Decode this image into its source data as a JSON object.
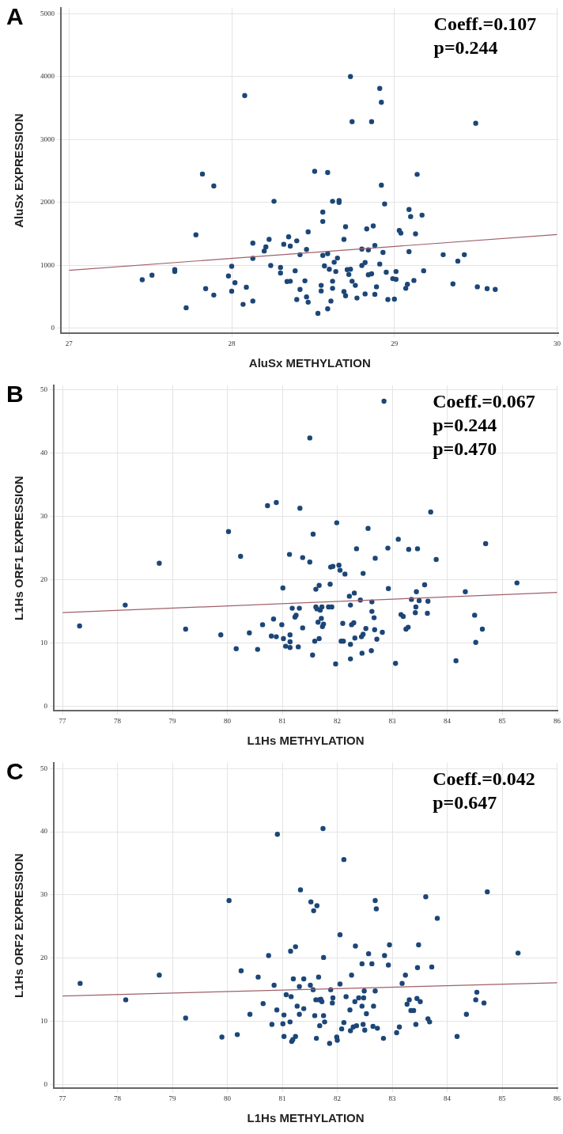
{
  "chart_data": [
    {
      "type": "scatter",
      "title": "A",
      "xlabel": "AluSx METHYLATION",
      "ylabel": "AluSx EXPRESSION",
      "xlim": [
        26.95,
        30.01
      ],
      "ylim": [
        -80,
        5090
      ],
      "xticks": [
        27,
        28,
        29,
        30
      ],
      "yticks": [
        0,
        1000,
        2000,
        3000,
        4000,
        5000
      ],
      "grid": true,
      "annotations": [
        "Coeff.=0.107",
        "p=0.244"
      ],
      "series": [
        {
          "color": "#1c4677",
          "marker": "circle",
          "x": [
            27.45,
            27.51,
            27.65,
            27.65,
            27.72,
            27.78,
            27.82,
            27.84,
            27.89,
            27.89,
            27.98,
            28.0,
            28.0,
            28.02,
            28.07,
            28.08,
            28.09,
            28.13,
            28.13,
            28.13,
            28.2,
            28.21,
            28.23,
            28.24,
            28.26,
            28.3,
            28.3,
            28.32,
            28.35,
            28.34,
            28.36,
            28.36,
            28.39,
            28.4,
            28.42,
            28.42,
            28.4,
            28.45,
            28.46,
            28.47,
            28.46,
            28.47,
            28.51,
            28.53,
            28.55,
            28.55,
            28.56,
            28.56,
            28.56,
            28.57,
            28.59,
            28.59,
            28.59,
            28.6,
            28.61,
            28.62,
            28.62,
            28.62,
            28.63,
            28.64,
            28.65,
            28.66,
            28.66,
            28.69,
            28.69,
            28.7,
            28.7,
            28.71,
            28.72,
            28.73,
            28.73,
            28.74,
            28.74,
            28.76,
            28.77,
            28.8,
            28.8,
            28.82,
            28.82,
            28.83,
            28.84,
            28.84,
            28.86,
            28.86,
            28.87,
            28.88,
            28.88,
            28.89,
            28.91,
            28.91,
            28.92,
            28.92,
            28.93,
            28.94,
            28.95,
            28.96,
            28.99,
            29.0,
            29.01,
            29.01,
            29.03,
            29.04,
            29.07,
            29.08,
            29.09,
            29.09,
            29.1,
            29.12,
            29.13,
            29.14,
            29.17,
            29.18,
            29.3,
            29.36,
            29.39,
            29.43,
            29.5,
            29.51,
            29.57,
            29.62
          ],
          "values": [
            772,
            843,
            932,
            902,
            326,
            1484,
            2451,
            629,
            528,
            2261,
            831,
            985,
            588,
            724,
            380,
            3697,
            653,
            1353,
            1110,
            433,
            1228,
            1294,
            1412,
            997,
            2018,
            878,
            967,
            1335,
            1454,
            742,
            1306,
            748,
            914,
            1389,
            1169,
            617,
            457,
            754,
            1252,
            1531,
            499,
            415,
            2493,
            237,
            682,
            593,
            1697,
            1846,
            1157,
            991,
            2475,
            309,
            1187,
            938,
            433,
            635,
            748,
            2018,
            1050,
            902,
            1116,
            2030,
            2000,
            1412,
            582,
            1614,
            516,
            932,
            855,
            938,
            4000,
            748,
            3282,
            682,
            481,
            1258,
            997,
            1044,
            546,
            1579,
            1246,
            849,
            866,
            3282,
            1626,
            540,
            1317,
            659,
            1021,
            3810,
            3591,
            2273,
            1205,
            1976,
            890,
            457,
            789,
            463,
            902,
            777,
            1555,
            1513,
            635,
            700,
            1887,
            1217,
            1775,
            760,
            1501,
            2445,
            1798,
            914,
            1169,
            706,
            1068,
            1169,
            3258,
            659,
            629,
            617
          ]
        },
        {
          "type": "line",
          "color": "#a0606a",
          "marker": "none",
          "x": [
            27,
            30
          ],
          "values": [
            920,
            1490
          ]
        }
      ]
    },
    {
      "type": "scatter",
      "title": "B",
      "xlabel": "L1Hs METHYLATION",
      "ylabel": "L1Hs ORF1 EXPRESSION",
      "xlim": [
        76.84,
        86.01
      ],
      "ylim": [
        -0.7,
        50.7
      ],
      "xticks": [
        77,
        78,
        79,
        80,
        81,
        82,
        83,
        84,
        85,
        86
      ],
      "yticks": [
        0,
        10,
        20,
        30,
        40,
        50
      ],
      "grid": true,
      "annotations": [
        "Coeff.=0.067",
        "p=0.244",
        "p=0.470"
      ],
      "series": [
        {
          "color": "#1c4677",
          "marker": "circle",
          "x": [
            77.31,
            78.14,
            78.76,
            79.24,
            79.88,
            80.02,
            80.16,
            80.24,
            80.4,
            80.55,
            80.64,
            80.73,
            80.8,
            80.84,
            80.89,
            80.89,
            80.99,
            81.01,
            81.02,
            81.06,
            81.13,
            81.14,
            81.14,
            81.14,
            81.18,
            81.23,
            81.25,
            81.29,
            81.31,
            81.32,
            81.37,
            81.37,
            81.5,
            81.5,
            81.56,
            81.55,
            81.59,
            81.61,
            81.61,
            81.63,
            81.65,
            81.67,
            81.67,
            81.69,
            81.71,
            81.72,
            81.73,
            81.75,
            81.84,
            81.87,
            81.88,
            81.9,
            81.92,
            81.97,
            81.99,
            82.03,
            82.05,
            82.07,
            82.11,
            82.1,
            82.14,
            82.22,
            82.24,
            82.24,
            82.24,
            82.26,
            82.3,
            82.31,
            82.32,
            82.35,
            82.42,
            82.44,
            82.45,
            82.47,
            82.47,
            82.52,
            82.56,
            82.62,
            82.63,
            82.63,
            82.67,
            82.68,
            82.69,
            82.72,
            82.82,
            82.85,
            82.92,
            82.93,
            83.06,
            83.11,
            83.16,
            83.2,
            83.25,
            83.29,
            83.3,
            83.35,
            83.42,
            83.43,
            83.44,
            83.46,
            83.49,
            83.59,
            83.64,
            83.65,
            83.7,
            83.8,
            84.16,
            84.33,
            84.5,
            84.52,
            84.64,
            84.7,
            85.27
          ],
          "values": [
            12.7,
            16.0,
            22.6,
            12.2,
            11.3,
            27.6,
            9.1,
            23.7,
            11.6,
            9.0,
            12.9,
            31.7,
            11.1,
            13.8,
            32.2,
            11.0,
            12.9,
            18.7,
            10.7,
            9.5,
            24.0,
            11.3,
            10.2,
            9.3,
            15.5,
            14.1,
            14.4,
            9.4,
            15.5,
            31.3,
            23.5,
            12.4,
            42.4,
            22.8,
            27.2,
            8.1,
            10.3,
            15.7,
            18.5,
            15.4,
            13.3,
            19.1,
            10.7,
            15.2,
            13.9,
            15.7,
            12.6,
            13.0,
            15.7,
            19.3,
            22.0,
            15.7,
            22.1,
            6.7,
            29.0,
            22.3,
            21.5,
            10.3,
            10.3,
            13.1,
            20.9,
            17.4,
            9.8,
            16.0,
            7.5,
            12.9,
            13.2,
            17.9,
            10.8,
            24.9,
            16.8,
            11.0,
            8.4,
            21.0,
            11.4,
            12.3,
            28.1,
            8.8,
            16.5,
            15.0,
            14.0,
            12.1,
            23.4,
            10.6,
            11.7,
            48.2,
            25.0,
            18.6,
            6.8,
            26.4,
            14.5,
            14.2,
            12.2,
            12.5,
            24.8,
            16.9,
            14.8,
            15.7,
            18.1,
            24.9,
            16.7,
            19.2,
            14.7,
            16.6,
            30.7,
            23.2,
            7.2,
            18.1,
            14.4,
            10.1,
            12.2,
            25.7,
            19.5
          ]
        },
        {
          "type": "line",
          "color": "#a0606a",
          "marker": "none",
          "x": [
            77,
            86
          ],
          "values": [
            14.8,
            18.0
          ]
        }
      ]
    },
    {
      "type": "scatter",
      "title": "C",
      "xlabel": "L1Hs METHYLATION",
      "ylabel": "L1Hs ORF2 EXPRESSION",
      "xlim": [
        76.84,
        86.01
      ],
      "ylim": [
        -0.6,
        50.9
      ],
      "xticks": [
        77,
        78,
        79,
        80,
        81,
        82,
        83,
        84,
        85,
        86
      ],
      "yticks": [
        0,
        10,
        20,
        30,
        40,
        50
      ],
      "grid": true,
      "annotations": [
        "Coeff.=0.042",
        "p=0.647"
      ],
      "series": [
        {
          "color": "#1c4677",
          "marker": "circle",
          "x": [
            77.32,
            78.15,
            78.76,
            79.24,
            79.9,
            80.03,
            80.18,
            80.25,
            80.41,
            80.56,
            80.65,
            80.75,
            80.81,
            80.85,
            80.9,
            80.91,
            81.01,
            81.03,
            81.03,
            81.07,
            81.14,
            81.15,
            81.16,
            81.17,
            81.19,
            81.2,
            81.24,
            81.24,
            81.27,
            81.31,
            81.31,
            81.33,
            81.39,
            81.39,
            81.51,
            81.52,
            81.56,
            81.57,
            81.59,
            81.61,
            81.62,
            81.63,
            81.66,
            81.67,
            81.68,
            81.7,
            81.72,
            81.74,
            81.75,
            81.75,
            81.77,
            81.86,
            81.88,
            81.91,
            81.92,
            81.99,
            82.0,
            82.05,
            82.05,
            82.08,
            82.12,
            82.12,
            82.16,
            82.23,
            82.24,
            82.26,
            82.29,
            82.32,
            82.33,
            82.35,
            82.39,
            82.45,
            82.45,
            82.47,
            82.48,
            82.5,
            82.49,
            82.53,
            82.57,
            82.63,
            82.65,
            82.66,
            82.69,
            82.71,
            82.69,
            82.73,
            82.84,
            82.86,
            82.93,
            82.95,
            83.08,
            83.13,
            83.18,
            83.24,
            83.27,
            83.31,
            83.34,
            83.39,
            83.43,
            83.46,
            83.48,
            83.45,
            83.51,
            83.61,
            83.65,
            83.68,
            83.72,
            83.82,
            84.18,
            84.35,
            84.52,
            84.54,
            84.67,
            84.73,
            85.29
          ],
          "values": [
            16.0,
            13.4,
            17.3,
            10.5,
            7.5,
            29.1,
            7.9,
            18.0,
            11.1,
            17.0,
            12.8,
            20.4,
            9.5,
            15.7,
            11.8,
            39.6,
            9.6,
            11.0,
            7.6,
            14.2,
            9.9,
            21.1,
            13.9,
            6.8,
            7.1,
            16.7,
            21.8,
            7.6,
            12.4,
            11.1,
            15.5,
            30.8,
            16.7,
            12.0,
            15.7,
            28.9,
            15.0,
            27.5,
            10.9,
            13.4,
            7.3,
            28.3,
            17.0,
            13.4,
            9.3,
            13.5,
            13.1,
            40.5,
            20.1,
            10.9,
            9.9,
            6.5,
            15.0,
            12.9,
            13.7,
            7.5,
            7.0,
            23.7,
            15.9,
            8.8,
            35.6,
            9.8,
            13.9,
            11.8,
            8.5,
            17.3,
            9.1,
            13.1,
            21.9,
            9.3,
            13.7,
            19.1,
            12.4,
            9.5,
            13.7,
            8.6,
            14.8,
            11.2,
            20.7,
            19.1,
            9.2,
            12.4,
            29.1,
            27.8,
            14.8,
            8.9,
            7.3,
            20.4,
            18.9,
            22.1,
            8.2,
            9.1,
            16.0,
            17.3,
            12.7,
            13.4,
            11.7,
            11.7,
            9.5,
            18.5,
            22.1,
            13.6,
            13.1,
            29.7,
            10.4,
            9.9,
            18.6,
            26.3,
            7.6,
            11.1,
            13.4,
            14.6,
            12.9,
            30.5,
            20.8
          ]
        },
        {
          "type": "line",
          "color": "#a0606a",
          "marker": "none",
          "x": [
            77,
            86
          ],
          "values": [
            14.0,
            16.1
          ]
        }
      ]
    }
  ]
}
